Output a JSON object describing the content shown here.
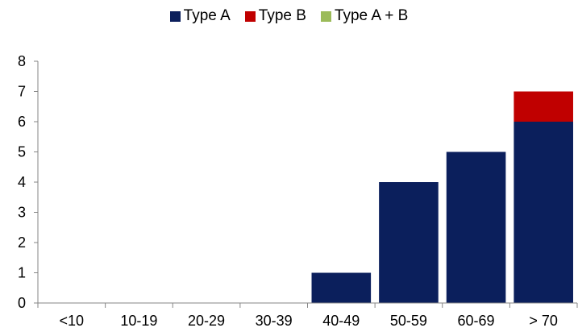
{
  "chart_data": {
    "type": "bar",
    "stacked": true,
    "categories": [
      "<10",
      "10-19",
      "20-29",
      "30-39",
      "40-49",
      "50-59",
      "60-69",
      "> 70"
    ],
    "series": [
      {
        "name": "Type A",
        "color": "#0b1f5c",
        "values": [
          0,
          0,
          0,
          0,
          1,
          4,
          5,
          6
        ]
      },
      {
        "name": "Type B",
        "color": "#c00000",
        "values": [
          0,
          0,
          0,
          0,
          0,
          0,
          0,
          1
        ]
      },
      {
        "name": "Type A + B",
        "color": "#9bbb59",
        "values": [
          0,
          0,
          0,
          0,
          0,
          0,
          0,
          0
        ]
      }
    ],
    "ylim": [
      0,
      8
    ],
    "yticks": [
      "0",
      "1",
      "2",
      "3",
      "4",
      "5",
      "6",
      "7",
      "8"
    ],
    "grid": false,
    "legend_position": "top"
  }
}
